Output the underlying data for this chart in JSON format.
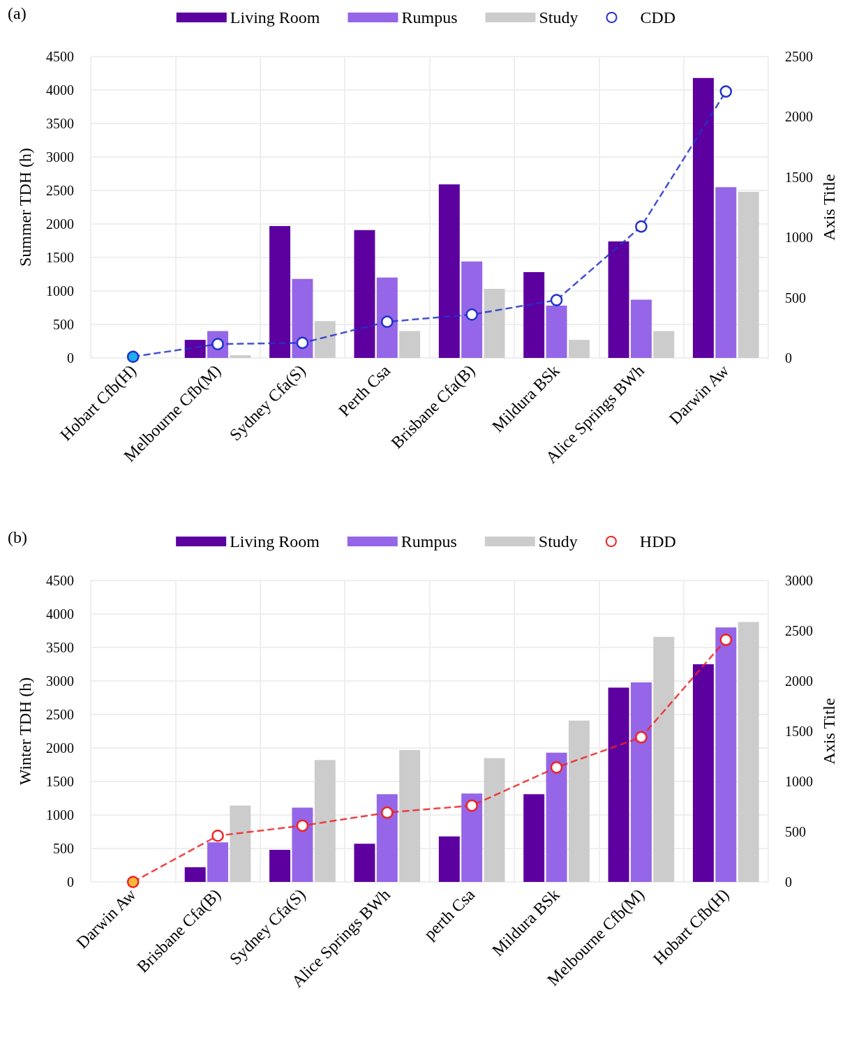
{
  "chart_data": [
    {
      "type": "bar",
      "title": "(a)",
      "ylabel": "Summer TDH (h)",
      "y2label": "Axis Title",
      "categories": [
        "Hobart Cfb(H)",
        "Melbourne Cfb(M)",
        "Sydney Cfa(S)",
        "Perth Csa",
        "Brisbane Cfa(B)",
        "Mildura BSk",
        "Alice Springs BWh",
        "Darwin Aw"
      ],
      "series": [
        {
          "name": "Living Room",
          "color": "#5c00a0",
          "values": [
            0,
            270,
            1970,
            1910,
            2590,
            1280,
            1740,
            4180
          ]
        },
        {
          "name": "Rumpus",
          "color": "#9566e8",
          "values": [
            0,
            400,
            1180,
            1200,
            1440,
            780,
            870,
            2550
          ]
        },
        {
          "name": "Study",
          "color": "#cccccc",
          "values": [
            0,
            40,
            550,
            400,
            1030,
            270,
            400,
            2480
          ]
        },
        {
          "name": "CDD",
          "type": "line",
          "axis": "y2",
          "color": "#2233cc",
          "colors": [
            "#1eaee8",
            "#ffffff",
            "#ffffff",
            "#ffffff",
            "#ffffff",
            "#ffffff",
            "#ffffff",
            "#ffffff"
          ],
          "values": [
            10,
            115,
            125,
            300,
            360,
            480,
            1090,
            2210
          ]
        }
      ],
      "ylim": [
        0,
        4500
      ],
      "yticks": [
        0,
        500,
        1000,
        1500,
        2000,
        2500,
        3000,
        3500,
        4000,
        4500
      ],
      "y2lim": [
        0,
        2500
      ],
      "y2ticks": [
        0,
        500,
        1000,
        1500,
        2000,
        2500
      ],
      "grid": true,
      "legend": "top",
      "marker": "circle",
      "line_style": "dashed"
    },
    {
      "type": "bar",
      "title": "(b)",
      "ylabel": "Winter TDH (h)",
      "y2label": "Axis Title",
      "categories": [
        "Darwin Aw",
        "Brisbane Cfa(B)",
        "Sydney Cfa(S)",
        "Alice Springs BWh",
        "perth Csa",
        "Mildura BSk",
        "Melbourne Cfb(M)",
        "Hobart Cfb(H)"
      ],
      "series": [
        {
          "name": "Living Room",
          "color": "#5c00a0",
          "values": [
            0,
            220,
            480,
            570,
            680,
            1310,
            2900,
            3250
          ]
        },
        {
          "name": "Rumpus",
          "color": "#9566e8",
          "values": [
            0,
            590,
            1110,
            1310,
            1320,
            1930,
            2980,
            3800
          ]
        },
        {
          "name": "Study",
          "color": "#cccccc",
          "values": [
            0,
            1140,
            1820,
            1970,
            1850,
            2410,
            3660,
            3880
          ]
        },
        {
          "name": "HDD",
          "type": "line",
          "axis": "y2",
          "color": "#ee2222",
          "colors": [
            "#f5b83a",
            "#ffffff",
            "#ffffff",
            "#ffffff",
            "#ffffff",
            "#ffffff",
            "#ffffff",
            "#ffffff"
          ],
          "values": [
            0,
            460,
            560,
            690,
            760,
            1140,
            1440,
            2410
          ]
        }
      ],
      "ylim": [
        0,
        4500
      ],
      "yticks": [
        0,
        500,
        1000,
        1500,
        2000,
        2500,
        3000,
        3500,
        4000,
        4500
      ],
      "y2lim": [
        0,
        3000
      ],
      "y2ticks": [
        0,
        500,
        1000,
        1500,
        2000,
        2500,
        3000
      ],
      "grid": true,
      "legend": "top",
      "marker": "circle",
      "line_style": "dashed"
    }
  ]
}
